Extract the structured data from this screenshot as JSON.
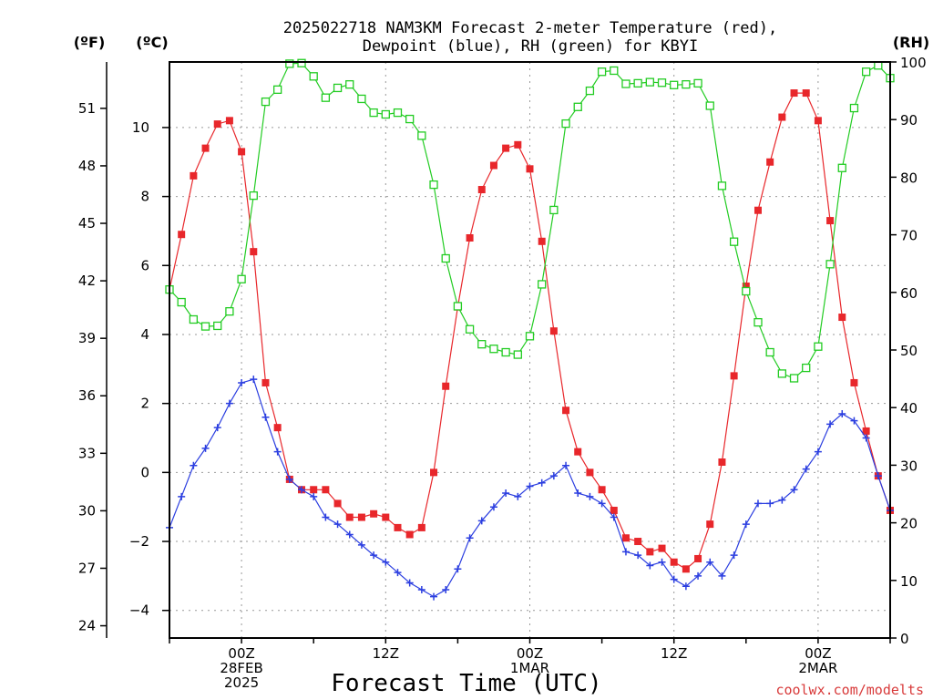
{
  "chart_data": {
    "type": "line",
    "title_lines": [
      "2025022718 NAM3KM Forecast 2-meter Temperature (red),",
      "Dewpoint (blue), RH (green) for KBYI"
    ],
    "axis_units": {
      "fahrenheit": "(ºF)",
      "celsius": "(ºC)",
      "rh": "(RH)"
    },
    "xlabel": "Forecast Time (UTC)",
    "credit": "coolwx.com/modelts",
    "xlim": [
      0,
      60
    ],
    "ylim_c": [
      -4.8,
      11.9
    ],
    "ylim_rh": [
      0,
      100
    ],
    "grid": true,
    "celsius_ticks": [
      -4,
      -2,
      0,
      2,
      4,
      6,
      8,
      10
    ],
    "fahrenheit_ticks": [
      24,
      27,
      30,
      33,
      36,
      39,
      42,
      45,
      48,
      51
    ],
    "rh_ticks": [
      0,
      10,
      20,
      30,
      40,
      50,
      60,
      70,
      80,
      90,
      100
    ],
    "x_ticks": [
      {
        "x": 6,
        "lines": [
          "00Z",
          "28FEB",
          "2025"
        ]
      },
      {
        "x": 18,
        "lines": [
          "12Z"
        ]
      },
      {
        "x": 30,
        "lines": [
          "00Z",
          "1MAR"
        ]
      },
      {
        "x": 42,
        "lines": [
          "12Z"
        ]
      },
      {
        "x": 54,
        "lines": [
          "00Z",
          "2MAR"
        ]
      }
    ],
    "x": [
      0,
      1,
      2,
      3,
      4,
      5,
      6,
      7,
      8,
      9,
      10,
      11,
      12,
      13,
      14,
      15,
      16,
      17,
      18,
      19,
      20,
      21,
      22,
      23,
      24,
      25,
      26,
      27,
      28,
      29,
      30,
      31,
      32,
      33,
      34,
      35,
      36,
      37,
      38,
      39,
      40,
      41,
      42,
      43,
      44,
      45,
      46,
      47,
      48,
      49,
      50,
      51,
      52,
      53,
      54,
      55,
      56,
      57,
      58,
      59,
      60
    ],
    "series": [
      {
        "name": "Temperature",
        "unit": "C",
        "color": "#e8272b",
        "marker": "filled-square",
        "values": [
          5.3,
          6.9,
          8.6,
          9.4,
          10.1,
          10.2,
          9.3,
          6.4,
          2.6,
          1.3,
          -0.2,
          -0.5,
          -0.5,
          -0.5,
          -0.9,
          -1.3,
          -1.3,
          -1.2,
          -1.3,
          -1.6,
          -1.8,
          -1.6,
          0.0,
          2.5,
          4.8,
          6.8,
          8.2,
          8.9,
          9.4,
          9.5,
          8.8,
          6.7,
          4.1,
          1.8,
          0.6,
          0.0,
          -0.5,
          -1.1,
          -1.9,
          -2.0,
          -2.3,
          -2.2,
          -2.6,
          -2.8,
          -2.5,
          -1.5,
          0.3,
          2.8,
          5.4,
          7.6,
          9.0,
          10.3,
          11.0,
          11.0,
          10.2,
          7.3,
          4.5,
          2.6,
          1.2,
          -0.1,
          -1.1
        ]
      },
      {
        "name": "Dewpoint",
        "unit": "C",
        "color": "#2b3ee0",
        "marker": "plus",
        "values": [
          -1.6,
          -0.7,
          0.2,
          0.7,
          1.3,
          2.0,
          2.6,
          2.7,
          1.6,
          0.6,
          -0.2,
          -0.5,
          -0.7,
          -1.3,
          -1.5,
          -1.8,
          -2.1,
          -2.4,
          -2.6,
          -2.9,
          -3.2,
          -3.4,
          -3.6,
          -3.4,
          -2.8,
          -1.9,
          -1.4,
          -1.0,
          -0.6,
          -0.7,
          -0.4,
          -0.3,
          -0.1,
          0.2,
          -0.6,
          -0.7,
          -0.9,
          -1.3,
          -2.3,
          -2.4,
          -2.7,
          -2.6,
          -3.1,
          -3.3,
          -3.0,
          -2.6,
          -3.0,
          -2.4,
          -1.5,
          -0.9,
          -0.9,
          -0.8,
          -0.5,
          0.1,
          0.6,
          1.4,
          1.7,
          1.5,
          1.0,
          -0.1,
          -1.1
        ]
      },
      {
        "name": "RH",
        "unit": "%",
        "color": "#22cc22",
        "marker": "open-square",
        "values": [
          60.5,
          58.3,
          55.3,
          54.1,
          54.2,
          56.7,
          62.3,
          76.8,
          93.1,
          95.2,
          99.7,
          99.8,
          97.5,
          93.8,
          95.5,
          96.1,
          93.6,
          91.2,
          90.9,
          91.2,
          90.1,
          87.2,
          78.7,
          65.9,
          57.6,
          53.6,
          51.0,
          50.2,
          49.6,
          49.2,
          52.4,
          61.4,
          74.3,
          89.3,
          92.2,
          95.0,
          98.3,
          98.5,
          96.2,
          96.3,
          96.5,
          96.4,
          96.0,
          96.1,
          96.3,
          92.4,
          78.5,
          68.8,
          60.2,
          54.8,
          49.6,
          45.9,
          45.1,
          46.9,
          50.6,
          64.9,
          81.6,
          92.0,
          98.3,
          99.4,
          97.2
        ]
      }
    ]
  }
}
